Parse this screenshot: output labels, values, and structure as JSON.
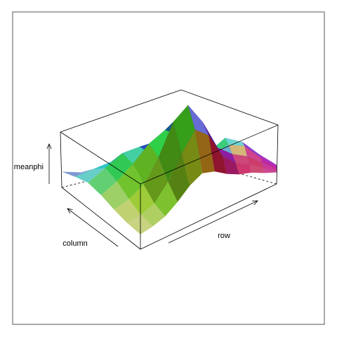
{
  "chart_data": {
    "type": "surface3d",
    "title": "",
    "xlabel": "row",
    "ylabel": "column",
    "zlabel": "meanphi",
    "grid": false,
    "legend": "none",
    "colormap": "rainbow-hue by surface normal with shading",
    "surface_description_z": [
      [
        0.15,
        0.14,
        0.16,
        0.18,
        0.17,
        0.15,
        0.16,
        0.18,
        0.2,
        0.18,
        0.15,
        0.12
      ],
      [
        0.2,
        0.26,
        0.32,
        0.34,
        0.3,
        0.28,
        0.26,
        0.3,
        0.36,
        0.32,
        0.24,
        0.16
      ],
      [
        0.24,
        0.36,
        0.48,
        0.52,
        0.4,
        0.34,
        0.3,
        0.38,
        0.5,
        0.44,
        0.3,
        0.18
      ],
      [
        0.22,
        0.32,
        0.46,
        0.62,
        0.72,
        0.64,
        0.44,
        0.4,
        0.46,
        0.42,
        0.28,
        0.16
      ],
      [
        0.18,
        0.24,
        0.34,
        0.56,
        0.86,
        0.98,
        0.78,
        0.5,
        0.4,
        0.34,
        0.24,
        0.14
      ],
      [
        0.15,
        0.18,
        0.24,
        0.4,
        0.62,
        0.8,
        0.7,
        0.46,
        0.34,
        0.28,
        0.2,
        0.12
      ],
      [
        0.14,
        0.16,
        0.2,
        0.28,
        0.38,
        0.44,
        0.4,
        0.32,
        0.26,
        0.22,
        0.16,
        0.11
      ]
    ]
  }
}
